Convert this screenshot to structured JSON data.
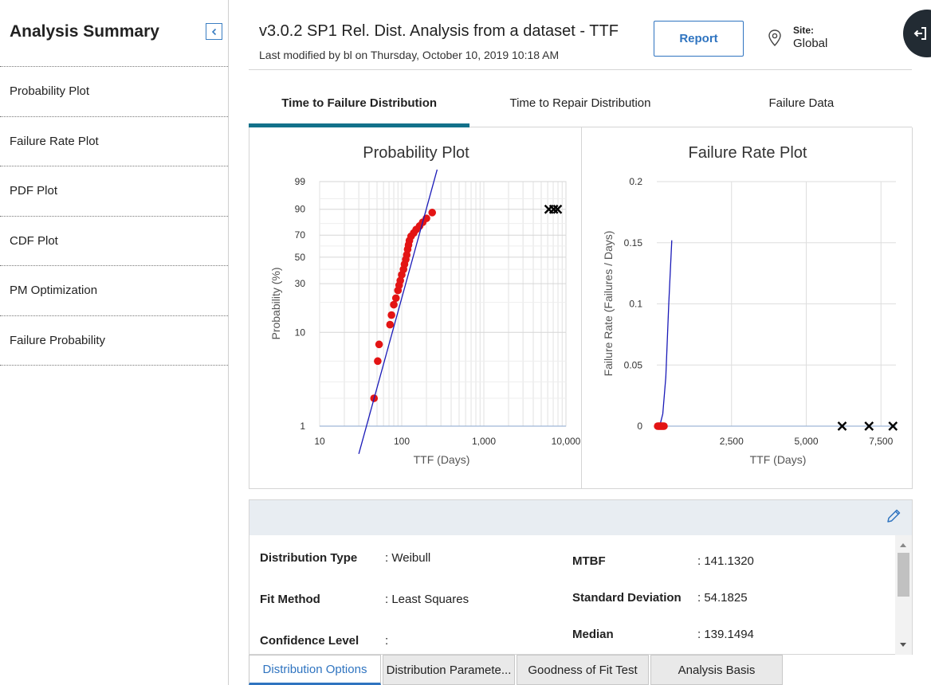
{
  "sidebar": {
    "title": "Analysis Summary",
    "items": [
      {
        "label": "Probability Plot"
      },
      {
        "label": "Failure Rate Plot"
      },
      {
        "label": "PDF Plot"
      },
      {
        "label": "CDF Plot"
      },
      {
        "label": "PM Optimization"
      },
      {
        "label": "Failure Probability"
      }
    ]
  },
  "header": {
    "title": "v3.0.2 SP1 Rel. Dist. Analysis from a dataset - TTF",
    "subtitle": "Last modified by bl on Thursday, October 10, 2019 10:18 AM",
    "report_label": "Report",
    "site_label": "Site:",
    "site_value": "Global"
  },
  "tabs": [
    {
      "label": "Time to Failure Distribution",
      "active": true
    },
    {
      "label": "Time to Repair Distribution",
      "active": false
    },
    {
      "label": "Failure Data",
      "active": false
    }
  ],
  "chart_data": [
    {
      "type": "scatter",
      "title": "Probability Plot",
      "xlabel": "TTF (Days)",
      "ylabel": "Probability (%)",
      "x_scale": "log",
      "y_scale": "weibull probability",
      "xlim": [
        10,
        10000
      ],
      "x_ticks": [
        "10",
        "100",
        "1,000",
        "10,000"
      ],
      "y_ticks": [
        "1",
        "10",
        "30",
        "50",
        "70",
        "90",
        "99"
      ],
      "grid": true,
      "series": [
        {
          "marker": "red-dot",
          "points": [
            [
              46,
              2
            ],
            [
              51,
              5
            ],
            [
              53,
              7.5
            ],
            [
              72,
              12
            ],
            [
              75,
              15
            ],
            [
              80,
              19
            ],
            [
              85,
              22
            ],
            [
              90,
              26
            ],
            [
              93,
              29
            ],
            [
              96,
              32
            ],
            [
              100,
              36
            ],
            [
              105,
              40
            ],
            [
              108,
              44
            ],
            [
              112,
              48
            ],
            [
              115,
              52
            ],
            [
              118,
              57
            ],
            [
              121,
              61
            ],
            [
              124,
              65
            ],
            [
              130,
              69
            ],
            [
              140,
              72
            ],
            [
              150,
              75
            ],
            [
              165,
              78
            ],
            [
              180,
              81
            ],
            [
              200,
              84
            ],
            [
              235,
              88
            ]
          ]
        },
        {
          "marker": "fit-line",
          "points": [
            [
              30,
              0.5
            ],
            [
              270,
              99.8
            ]
          ]
        },
        {
          "marker": "black-x",
          "points": [
            [
              6200,
              90
            ],
            [
              7100,
              90
            ],
            [
              7900,
              90
            ]
          ]
        }
      ]
    },
    {
      "type": "line",
      "title": "Failure Rate Plot",
      "xlabel": "TTF (Days)",
      "ylabel": "Failure Rate (Failures / Days)",
      "xlim": [
        0,
        8000
      ],
      "ylim": [
        0,
        0.2
      ],
      "x_ticks": [
        "2,500",
        "5,000",
        "7,500"
      ],
      "y_ticks": [
        "0",
        "0.05",
        "0.1",
        "0.15",
        "0.2"
      ],
      "grid": true,
      "series": [
        {
          "marker": "fit-line",
          "points": [
            [
              0,
              0
            ],
            [
              100,
              0.0005
            ],
            [
              200,
              0.01
            ],
            [
              300,
              0.04
            ],
            [
              400,
              0.1
            ],
            [
              500,
              0.152
            ]
          ]
        },
        {
          "marker": "red-dot",
          "points": [
            [
              30,
              0
            ],
            [
              60,
              0
            ],
            [
              90,
              0
            ],
            [
              120,
              0
            ],
            [
              150,
              0
            ],
            [
              180,
              0
            ],
            [
              210,
              0
            ],
            [
              240,
              0
            ]
          ]
        },
        {
          "marker": "black-x",
          "points": [
            [
              6200,
              0
            ],
            [
              7100,
              0
            ],
            [
              7900,
              0
            ]
          ]
        }
      ]
    }
  ],
  "details": {
    "fields": [
      {
        "label": "Distribution Type",
        "value": ": Weibull"
      },
      {
        "label": "Fit Method",
        "value": ": Least Squares"
      },
      {
        "label": "Confidence Level",
        "value": ":"
      },
      {
        "label": "MTBF",
        "value": ": 141.1320"
      },
      {
        "label": "Standard Deviation",
        "value": ": 54.1825"
      },
      {
        "label": "Median",
        "value": ": 139.1494"
      }
    ]
  },
  "bottom_tabs": [
    {
      "label": "Distribution Options",
      "active": true
    },
    {
      "label": "Distribution Paramete...",
      "active": false
    },
    {
      "label": "Goodness of Fit Test",
      "active": false
    },
    {
      "label": "Analysis Basis",
      "active": false
    }
  ],
  "colors": {
    "accent": "#13718a",
    "link": "#2f74c0",
    "fit_line": "#1a1ab8",
    "data_point": "#e31414"
  }
}
